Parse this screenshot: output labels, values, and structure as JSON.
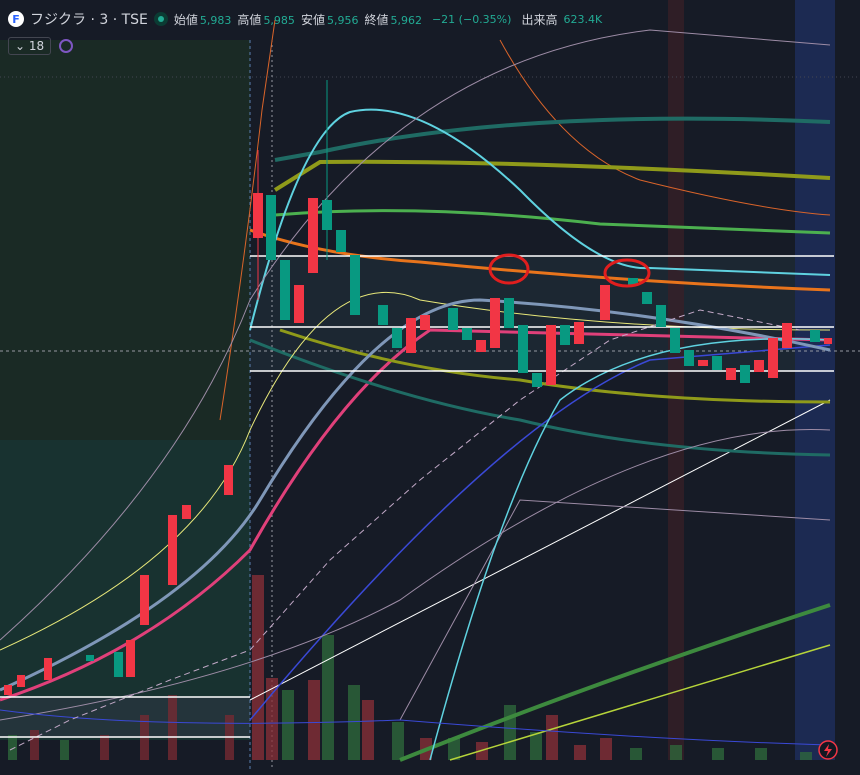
{
  "header": {
    "symbol": "フジクラ · 3 · TSE",
    "ohlc": [
      {
        "label": "始値",
        "value": "5,983"
      },
      {
        "label": "高値",
        "value": "5,985"
      },
      {
        "label": "安値",
        "value": "5,956"
      },
      {
        "label": "終値",
        "value": "5,962"
      }
    ],
    "change": "−21 (−0.35%)",
    "volume_label": "出来高",
    "volume": "623.4K"
  },
  "toolbar": {
    "interval": "18"
  }
}
